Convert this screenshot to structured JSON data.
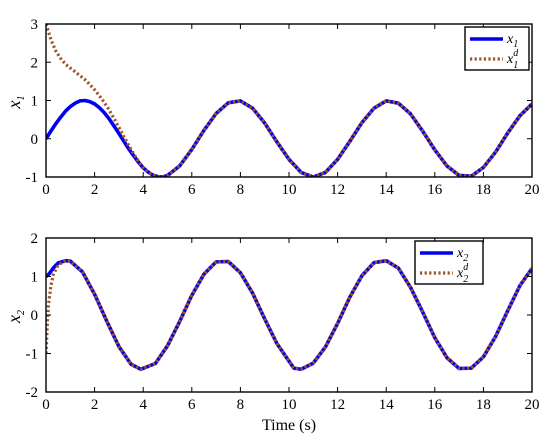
{
  "chart_data": [
    {
      "type": "line",
      "xlabel": "",
      "ylabel": {
        "base": "x",
        "sub": "1"
      },
      "xlim": [
        0,
        20
      ],
      "ylim": [
        -1,
        3
      ],
      "xticks": [
        0,
        2,
        4,
        6,
        8,
        10,
        12,
        14,
        16,
        18,
        20
      ],
      "yticks": [
        -1,
        0,
        1,
        2,
        3
      ],
      "grid": false,
      "legend_position": "top-right",
      "series": [
        {
          "name": {
            "base": "x",
            "sub": "1",
            "sup": ""
          },
          "style": "solid",
          "color": "#0000ee",
          "x": [
            0,
            0.2,
            0.4,
            0.6,
            0.8,
            1.0,
            1.2,
            1.4,
            1.6,
            1.8,
            2.0,
            2.2,
            2.4,
            2.6,
            2.8,
            3.0,
            3.2,
            3.4,
            3.6,
            3.8,
            4.0,
            4.2,
            4.4,
            4.6,
            4.8,
            5.0,
            5.5,
            6.0,
            6.5,
            7.0,
            7.5,
            8.0,
            8.5,
            9.0,
            9.5,
            10.0,
            10.5,
            11.0,
            11.5,
            12.0,
            12.5,
            13.0,
            13.5,
            14.0,
            14.5,
            15.0,
            15.5,
            16.0,
            16.5,
            17.0,
            17.5,
            18.0,
            18.5,
            19.0,
            19.5,
            20.0
          ],
          "y": [
            0,
            0.2,
            0.39,
            0.56,
            0.72,
            0.84,
            0.93,
            0.99,
            1.0,
            0.97,
            0.91,
            0.81,
            0.68,
            0.52,
            0.33,
            0.14,
            -0.06,
            -0.26,
            -0.44,
            -0.61,
            -0.76,
            -0.87,
            -0.95,
            -0.99,
            -1.0,
            -0.96,
            -0.71,
            -0.28,
            0.22,
            0.66,
            0.94,
            0.99,
            0.8,
            0.41,
            -0.08,
            -0.54,
            -0.88,
            -1.0,
            -0.88,
            -0.54,
            -0.07,
            0.42,
            0.8,
            0.99,
            0.93,
            0.65,
            0.2,
            -0.29,
            -0.71,
            -0.96,
            -0.98,
            -0.75,
            -0.35,
            0.15,
            0.6,
            0.91
          ]
        },
        {
          "name": {
            "base": "x",
            "sub": "1",
            "sup": "d"
          },
          "style": "dotted",
          "color": "#a0522d",
          "x": [
            0,
            0.2,
            0.4,
            0.6,
            0.8,
            1.0,
            1.2,
            1.4,
            1.6,
            1.8,
            2.0,
            2.2,
            2.4,
            2.6,
            2.8,
            3.0,
            3.2,
            3.4,
            3.6,
            3.8,
            4.0,
            4.2,
            4.4,
            4.6,
            4.8,
            5.0,
            5.5,
            6.0,
            6.5,
            7.0,
            7.5,
            8.0,
            8.5,
            9.0,
            9.5,
            10.0,
            10.5,
            11.0,
            11.5,
            12.0,
            12.5,
            13.0,
            13.5,
            14.0,
            14.5,
            15.0,
            15.5,
            16.0,
            16.5,
            17.0,
            17.5,
            18.0,
            18.5,
            19.0,
            19.5,
            20.0
          ],
          "y": [
            3.0,
            2.6,
            2.3,
            2.1,
            1.95,
            1.85,
            1.75,
            1.65,
            1.55,
            1.42,
            1.28,
            1.12,
            0.95,
            0.75,
            0.53,
            0.3,
            0.06,
            -0.17,
            -0.39,
            -0.58,
            -0.75,
            -0.87,
            -0.95,
            -0.99,
            -1.0,
            -0.96,
            -0.71,
            -0.28,
            0.22,
            0.66,
            0.94,
            0.99,
            0.8,
            0.41,
            -0.08,
            -0.54,
            -0.88,
            -1.0,
            -0.88,
            -0.54,
            -0.07,
            0.42,
            0.8,
            0.99,
            0.93,
            0.65,
            0.2,
            -0.29,
            -0.71,
            -0.96,
            -0.98,
            -0.75,
            -0.35,
            0.15,
            0.6,
            0.91
          ]
        }
      ]
    },
    {
      "type": "line",
      "xlabel": "Time (s)",
      "ylabel": {
        "base": "x",
        "sub": "2"
      },
      "xlim": [
        0,
        20
      ],
      "ylim": [
        -2,
        2
      ],
      "xticks": [
        0,
        2,
        4,
        6,
        8,
        10,
        12,
        14,
        16,
        18,
        20
      ],
      "yticks": [
        -2,
        -1,
        0,
        1,
        2
      ],
      "grid": false,
      "legend_position": "top-right",
      "series": [
        {
          "name": {
            "base": "x",
            "sub": "2",
            "sup": ""
          },
          "style": "solid",
          "color": "#0000ee",
          "x": [
            0,
            0.05,
            0.1,
            0.2,
            0.3,
            0.5,
            0.8,
            1.0,
            1.5,
            2.0,
            2.5,
            3.0,
            3.5,
            3.9,
            4.5,
            5.0,
            5.5,
            6.0,
            6.5,
            7.0,
            7.5,
            8.0,
            8.5,
            9.0,
            9.5,
            10.0,
            10.2,
            10.5,
            11.0,
            11.5,
            12.0,
            12.5,
            13.0,
            13.5,
            14.0,
            14.5,
            15.0,
            15.5,
            16.0,
            16.5,
            17.0,
            17.5,
            18.0,
            18.5,
            19.0,
            19.5,
            20.0
          ],
          "y": [
            1.0,
            1.02,
            1.05,
            1.13,
            1.22,
            1.35,
            1.41,
            1.4,
            1.12,
            0.54,
            -0.16,
            -0.82,
            -1.28,
            -1.41,
            -1.26,
            -0.8,
            -0.17,
            0.51,
            1.06,
            1.38,
            1.39,
            1.1,
            0.57,
            -0.1,
            -0.74,
            -1.2,
            -1.38,
            -1.41,
            -1.25,
            -0.83,
            -0.22,
            0.46,
            1.02,
            1.36,
            1.41,
            1.22,
            0.72,
            0.08,
            -0.59,
            -1.11,
            -1.39,
            -1.38,
            -1.09,
            -0.56,
            0.11,
            0.76,
            1.21
          ]
        },
        {
          "name": {
            "base": "x",
            "sub": "2",
            "sup": "d"
          },
          "style": "dotted",
          "color": "#a0522d",
          "x": [
            0,
            0.05,
            0.1,
            0.2,
            0.3,
            0.5,
            0.8,
            1.0,
            1.5,
            2.0,
            2.5,
            3.0,
            3.5,
            3.9,
            4.5,
            5.0,
            5.5,
            6.0,
            6.5,
            7.0,
            7.5,
            8.0,
            8.5,
            9.0,
            9.5,
            10.0,
            10.2,
            10.5,
            11.0,
            11.5,
            12.0,
            12.5,
            13.0,
            13.5,
            14.0,
            14.5,
            15.0,
            15.5,
            16.0,
            16.5,
            17.0,
            17.5,
            18.0,
            18.5,
            19.0,
            19.5,
            20.0
          ],
          "y": [
            -1.0,
            -0.3,
            0.25,
            0.75,
            1.05,
            1.3,
            1.41,
            1.4,
            1.12,
            0.54,
            -0.16,
            -0.82,
            -1.28,
            -1.41,
            -1.26,
            -0.8,
            -0.17,
            0.51,
            1.06,
            1.38,
            1.39,
            1.1,
            0.57,
            -0.1,
            -0.74,
            -1.2,
            -1.38,
            -1.41,
            -1.25,
            -0.83,
            -0.22,
            0.46,
            1.02,
            1.36,
            1.41,
            1.22,
            0.72,
            0.08,
            -0.59,
            -1.11,
            -1.39,
            -1.38,
            -1.09,
            -0.56,
            0.11,
            0.76,
            1.21
          ]
        }
      ]
    }
  ]
}
